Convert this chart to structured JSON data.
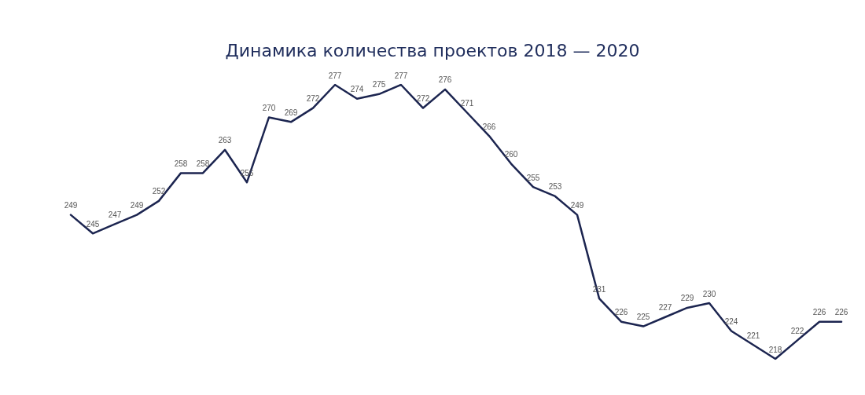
{
  "chart_data": {
    "type": "line",
    "title": "Динамика количества проектов 2018 — 2020",
    "categories": [
      null,
      null,
      null,
      null,
      null,
      null,
      null,
      null,
      null,
      null,
      null,
      null,
      null,
      null,
      null,
      null,
      null,
      null,
      null,
      null,
      null,
      null,
      null,
      null,
      null,
      null,
      null,
      null,
      null,
      null,
      null,
      null,
      null,
      null,
      null,
      null
    ],
    "values": [
      249,
      245,
      247,
      249,
      252,
      258,
      258,
      263,
      256,
      270,
      269,
      272,
      277,
      274,
      275,
      277,
      272,
      276,
      271,
      266,
      260,
      255,
      253,
      249,
      231,
      226,
      225,
      227,
      229,
      230,
      224,
      221,
      218,
      222,
      226,
      226
    ],
    "color": "#1c2550",
    "data_labels": true,
    "grid": false,
    "marker": "none",
    "line_style": "solid",
    "tick_labels": false
  }
}
